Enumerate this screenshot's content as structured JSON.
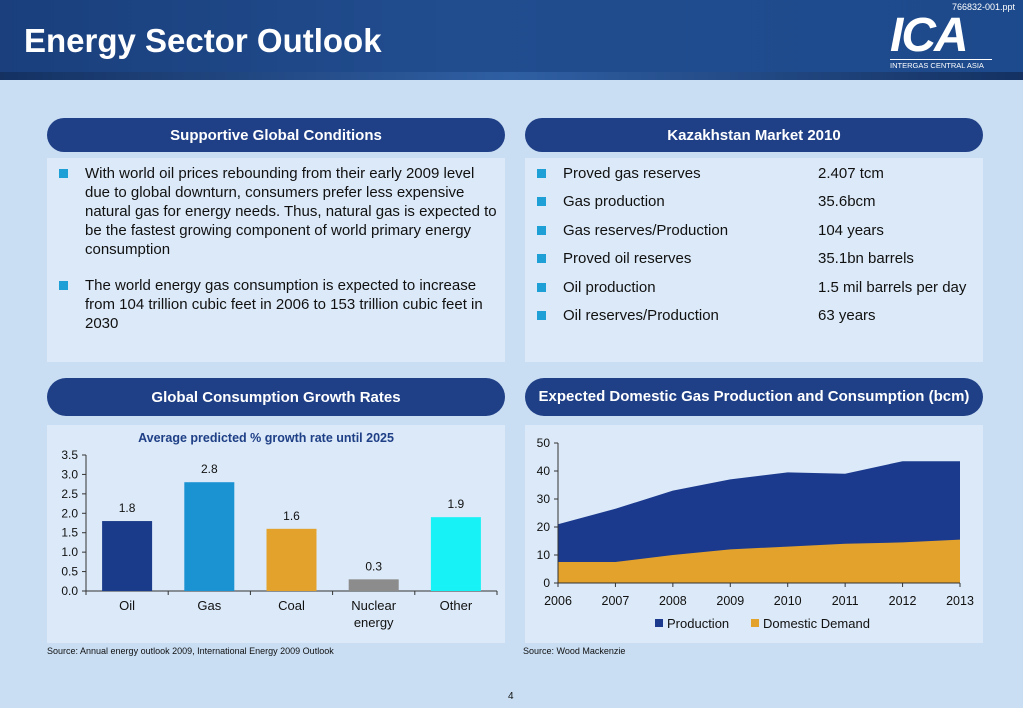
{
  "header": {
    "title": "Energy Sector Outlook",
    "file_ref": "766832-001.ppt",
    "logo_text": "ICA",
    "logo_tagline": "INTERGAS CENTRAL ASIA"
  },
  "sections": {
    "conditions": {
      "title": "Supportive Global Conditions",
      "bullets": [
        "With world oil prices rebounding from their early 2009 level due to global downturn, consumers prefer less expensive natural gas for energy needs. Thus, natural gas is expected to be the fastest growing component of world primary energy consumption",
        "The world energy gas consumption is expected to increase from 104 trillion cubic feet in 2006 to 153 trillion cubic feet in 2030"
      ]
    },
    "market": {
      "title": "Kazakhstan Market  2010",
      "rows": [
        {
          "label": "Proved gas reserves",
          "value": "2.407 tcm"
        },
        {
          "label": "Gas production",
          "value": "35.6bcm"
        },
        {
          "label": "Gas reserves/Production",
          "value": "104 years"
        },
        {
          "label": "Proved oil reserves",
          "value": "35.1bn barrels"
        },
        {
          "label": "Oil production",
          "value": "1.5 mil barrels per day"
        },
        {
          "label": "Oil reserves/Production",
          "value": "63 years"
        }
      ]
    },
    "growth": {
      "title": "Global Consumption Growth Rates",
      "source": "Source: Annual energy outlook 2009, International Energy 2009 Outlook"
    },
    "gas": {
      "title": "Expected Domestic Gas Production and Consumption (bcm)",
      "source": "Source: Wood Mackenzie"
    }
  },
  "page_number": "4",
  "chart_data": [
    {
      "type": "bar",
      "title": "Average predicted % growth rate until 2025",
      "categories": [
        "Oil",
        "Gas",
        "Coal",
        "Nuclear energy",
        "Other"
      ],
      "values": [
        1.8,
        2.8,
        1.6,
        0.3,
        1.9
      ],
      "data_labels": [
        "1.8",
        "2.8",
        "1.6",
        "0.3",
        "1.9"
      ],
      "colors": [
        "#1a3b8a",
        "#1b93d2",
        "#e3a22c",
        "#8c8c8c",
        "#16f2f5"
      ],
      "ylim": [
        0,
        3.5
      ],
      "yticks": [
        "0.0",
        "0.5",
        "1.0",
        "1.5",
        "2.0",
        "2.5",
        "3.0",
        "3.5"
      ],
      "grid": false
    },
    {
      "type": "area",
      "x": [
        2006,
        2007,
        2008,
        2009,
        2010,
        2011,
        2012,
        2013
      ],
      "series": [
        {
          "name": "Production",
          "values": [
            21,
            26.5,
            33,
            37,
            39.5,
            39,
            43.5,
            43.5
          ],
          "color": "#1b3a8e"
        },
        {
          "name": "Domestic Demand",
          "values": [
            7.5,
            7.5,
            10,
            12,
            13,
            14,
            14.5,
            15.5
          ],
          "color": "#e3a22c"
        }
      ],
      "ylim": [
        0,
        50
      ],
      "yticks": [
        "0",
        "10",
        "20",
        "30",
        "40",
        "50"
      ],
      "legend": "bottom",
      "grid": false
    }
  ]
}
